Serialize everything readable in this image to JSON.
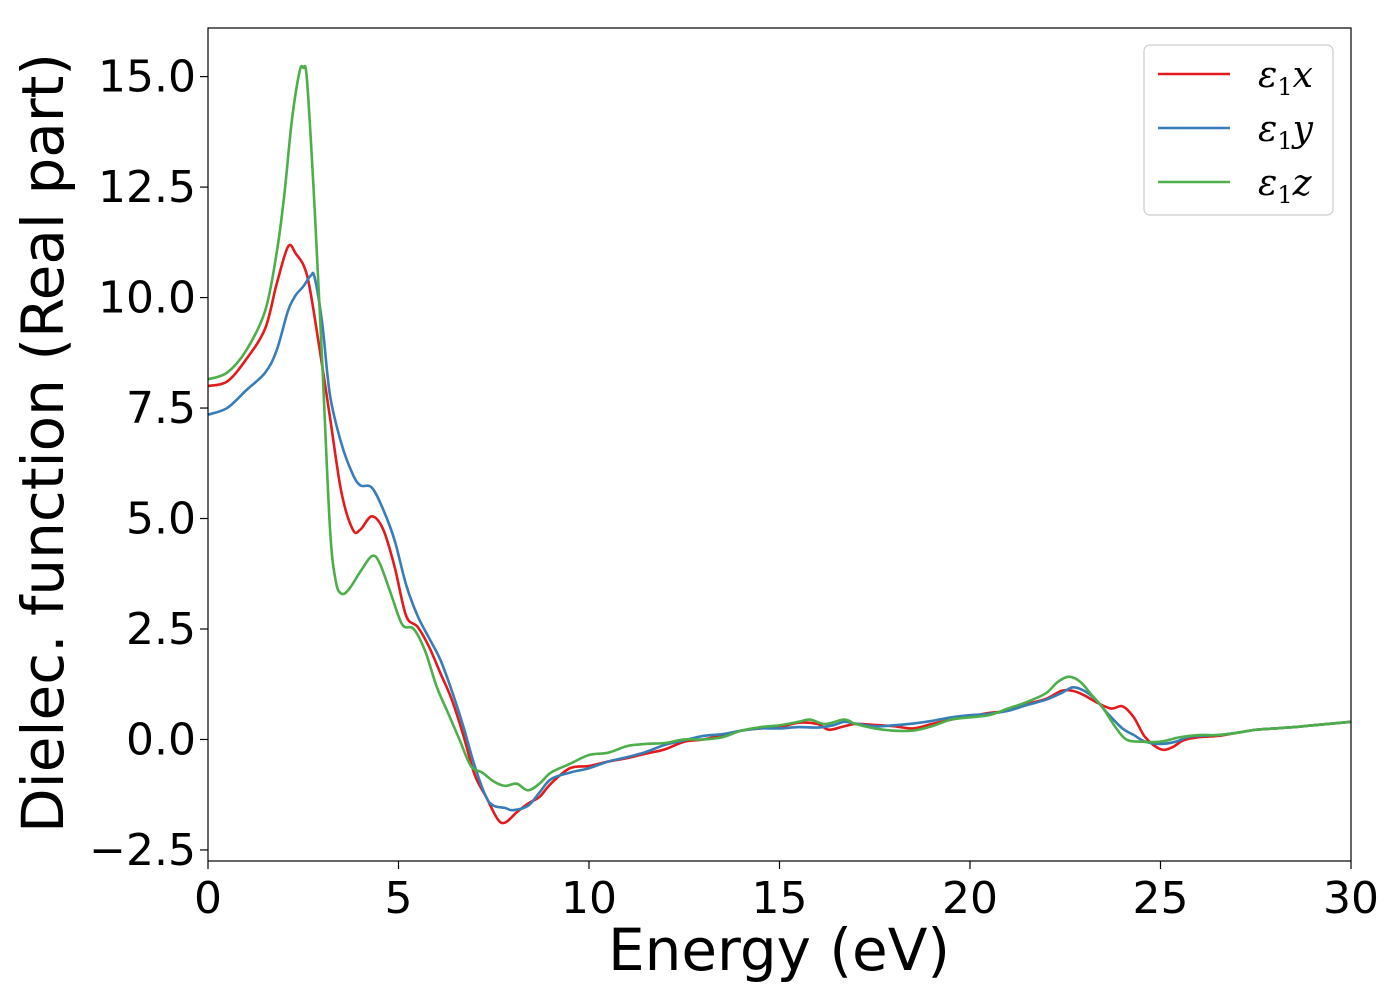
{
  "chart_data": {
    "type": "line",
    "xlabel": "Energy (eV)",
    "ylabel": "Dielec. function (Real part)",
    "xlim": [
      0,
      30
    ],
    "ylim": [
      -2.75,
      16.1
    ],
    "xticks": [
      0,
      5,
      10,
      15,
      20,
      25,
      30
    ],
    "xtick_labels": [
      "0",
      "5",
      "10",
      "15",
      "20",
      "25",
      "30"
    ],
    "yticks": [
      -2.5,
      0.0,
      2.5,
      5.0,
      7.5,
      10.0,
      12.5,
      15.0
    ],
    "ytick_labels": [
      "−2.5",
      "0.0",
      "2.5",
      "5.0",
      "7.5",
      "10.0",
      "12.5",
      "15.0"
    ],
    "grid": false,
    "legend_position": "top-right",
    "series": [
      {
        "name": "ε",
        "sub": "1",
        "axis": "x",
        "color": "#e41a1c",
        "points": [
          [
            0,
            8.0
          ],
          [
            0.5,
            8.1
          ],
          [
            1.0,
            8.6
          ],
          [
            1.5,
            9.3
          ],
          [
            1.8,
            10.3
          ],
          [
            2.1,
            11.15
          ],
          [
            2.3,
            11.0
          ],
          [
            2.6,
            10.5
          ],
          [
            2.9,
            9.0
          ],
          [
            3.2,
            7.3
          ],
          [
            3.5,
            5.6
          ],
          [
            3.8,
            4.75
          ],
          [
            4.0,
            4.75
          ],
          [
            4.3,
            5.05
          ],
          [
            4.6,
            4.75
          ],
          [
            4.9,
            3.9
          ],
          [
            5.2,
            2.8
          ],
          [
            5.5,
            2.55
          ],
          [
            5.8,
            2.1
          ],
          [
            6.1,
            1.5
          ],
          [
            6.4,
            0.9
          ],
          [
            6.7,
            0.1
          ],
          [
            7.0,
            -0.8
          ],
          [
            7.3,
            -1.3
          ],
          [
            7.6,
            -1.8
          ],
          [
            7.8,
            -1.88
          ],
          [
            8.1,
            -1.65
          ],
          [
            8.4,
            -1.45
          ],
          [
            8.7,
            -1.3
          ],
          [
            9.0,
            -1.0
          ],
          [
            9.5,
            -0.65
          ],
          [
            10.0,
            -0.6
          ],
          [
            10.5,
            -0.5
          ],
          [
            11.0,
            -0.42
          ],
          [
            11.5,
            -0.32
          ],
          [
            12.0,
            -0.22
          ],
          [
            12.5,
            -0.05
          ],
          [
            13.0,
            0.0
          ],
          [
            13.5,
            0.1
          ],
          [
            14.0,
            0.2
          ],
          [
            14.5,
            0.25
          ],
          [
            15.0,
            0.28
          ],
          [
            15.5,
            0.38
          ],
          [
            16.0,
            0.35
          ],
          [
            16.3,
            0.22
          ],
          [
            16.7,
            0.3
          ],
          [
            17.0,
            0.35
          ],
          [
            17.5,
            0.33
          ],
          [
            18.0,
            0.3
          ],
          [
            18.5,
            0.25
          ],
          [
            19.0,
            0.35
          ],
          [
            19.5,
            0.45
          ],
          [
            20.0,
            0.52
          ],
          [
            20.5,
            0.6
          ],
          [
            21.0,
            0.65
          ],
          [
            21.5,
            0.8
          ],
          [
            22.0,
            0.92
          ],
          [
            22.4,
            1.1
          ],
          [
            22.7,
            1.1
          ],
          [
            23.0,
            1.0
          ],
          [
            23.3,
            0.85
          ],
          [
            23.7,
            0.7
          ],
          [
            24.0,
            0.75
          ],
          [
            24.3,
            0.5
          ],
          [
            24.6,
            0.05
          ],
          [
            25.0,
            -0.22
          ],
          [
            25.3,
            -0.18
          ],
          [
            25.6,
            -0.02
          ],
          [
            26.0,
            0.05
          ],
          [
            26.5,
            0.08
          ],
          [
            27.0,
            0.15
          ],
          [
            27.5,
            0.22
          ],
          [
            28.0,
            0.25
          ],
          [
            28.5,
            0.28
          ],
          [
            29.0,
            0.32
          ],
          [
            29.5,
            0.36
          ],
          [
            30.0,
            0.4
          ]
        ]
      },
      {
        "name": "ε",
        "sub": "1",
        "axis": "y",
        "color": "#377eb8",
        "points": [
          [
            0,
            7.35
          ],
          [
            0.5,
            7.5
          ],
          [
            1.0,
            7.9
          ],
          [
            1.5,
            8.3
          ],
          [
            1.8,
            8.8
          ],
          [
            2.1,
            9.7
          ],
          [
            2.3,
            10.05
          ],
          [
            2.5,
            10.25
          ],
          [
            2.7,
            10.5
          ],
          [
            2.8,
            10.45
          ],
          [
            3.0,
            9.4
          ],
          [
            3.2,
            7.8
          ],
          [
            3.5,
            6.7
          ],
          [
            3.8,
            6.0
          ],
          [
            4.0,
            5.75
          ],
          [
            4.3,
            5.7
          ],
          [
            4.6,
            5.2
          ],
          [
            4.9,
            4.5
          ],
          [
            5.2,
            3.5
          ],
          [
            5.5,
            2.8
          ],
          [
            5.8,
            2.3
          ],
          [
            6.1,
            1.8
          ],
          [
            6.4,
            1.1
          ],
          [
            6.7,
            0.3
          ],
          [
            7.0,
            -0.6
          ],
          [
            7.3,
            -1.3
          ],
          [
            7.5,
            -1.5
          ],
          [
            7.8,
            -1.55
          ],
          [
            8.0,
            -1.6
          ],
          [
            8.4,
            -1.5
          ],
          [
            8.7,
            -1.2
          ],
          [
            9.0,
            -0.9
          ],
          [
            9.5,
            -0.75
          ],
          [
            10.0,
            -0.65
          ],
          [
            10.5,
            -0.5
          ],
          [
            11.0,
            -0.4
          ],
          [
            11.5,
            -0.28
          ],
          [
            12.0,
            -0.12
          ],
          [
            12.5,
            -0.02
          ],
          [
            13.0,
            0.08
          ],
          [
            13.5,
            0.12
          ],
          [
            14.0,
            0.2
          ],
          [
            14.5,
            0.25
          ],
          [
            15.0,
            0.25
          ],
          [
            15.5,
            0.28
          ],
          [
            16.0,
            0.27
          ],
          [
            16.4,
            0.32
          ],
          [
            16.7,
            0.4
          ],
          [
            17.0,
            0.36
          ],
          [
            17.5,
            0.3
          ],
          [
            18.0,
            0.32
          ],
          [
            18.5,
            0.36
          ],
          [
            19.0,
            0.42
          ],
          [
            19.5,
            0.5
          ],
          [
            20.0,
            0.55
          ],
          [
            20.5,
            0.58
          ],
          [
            21.0,
            0.65
          ],
          [
            21.5,
            0.78
          ],
          [
            22.0,
            0.9
          ],
          [
            22.4,
            1.05
          ],
          [
            22.7,
            1.18
          ],
          [
            23.0,
            1.1
          ],
          [
            23.3,
            0.9
          ],
          [
            23.6,
            0.6
          ],
          [
            24.0,
            0.25
          ],
          [
            24.3,
            0.1
          ],
          [
            24.6,
            -0.05
          ],
          [
            25.0,
            -0.1
          ],
          [
            25.4,
            -0.05
          ],
          [
            25.7,
            0.05
          ],
          [
            26.0,
            0.08
          ],
          [
            26.5,
            0.1
          ],
          [
            27.0,
            0.15
          ],
          [
            27.5,
            0.22
          ],
          [
            28.0,
            0.25
          ],
          [
            28.5,
            0.28
          ],
          [
            29.0,
            0.32
          ],
          [
            29.5,
            0.36
          ],
          [
            30.0,
            0.4
          ]
        ]
      },
      {
        "name": "ε",
        "sub": "1",
        "axis": "z",
        "color": "#4daf4a",
        "points": [
          [
            0,
            8.15
          ],
          [
            0.5,
            8.3
          ],
          [
            1.0,
            8.8
          ],
          [
            1.5,
            9.7
          ],
          [
            1.8,
            11.0
          ],
          [
            2.0,
            12.3
          ],
          [
            2.2,
            14.0
          ],
          [
            2.4,
            15.1
          ],
          [
            2.5,
            15.2
          ],
          [
            2.6,
            14.9
          ],
          [
            2.8,
            12.0
          ],
          [
            3.0,
            8.5
          ],
          [
            3.2,
            4.8
          ],
          [
            3.35,
            3.6
          ],
          [
            3.5,
            3.3
          ],
          [
            3.7,
            3.4
          ],
          [
            4.0,
            3.8
          ],
          [
            4.3,
            4.15
          ],
          [
            4.5,
            4.0
          ],
          [
            4.8,
            3.3
          ],
          [
            5.1,
            2.6
          ],
          [
            5.4,
            2.5
          ],
          [
            5.7,
            2.0
          ],
          [
            6.0,
            1.2
          ],
          [
            6.3,
            0.6
          ],
          [
            6.6,
            0.0
          ],
          [
            6.9,
            -0.6
          ],
          [
            7.2,
            -0.75
          ],
          [
            7.5,
            -0.95
          ],
          [
            7.8,
            -1.05
          ],
          [
            8.1,
            -1.0
          ],
          [
            8.4,
            -1.15
          ],
          [
            8.7,
            -1.0
          ],
          [
            9.0,
            -0.75
          ],
          [
            9.5,
            -0.55
          ],
          [
            10.0,
            -0.35
          ],
          [
            10.5,
            -0.3
          ],
          [
            11.0,
            -0.15
          ],
          [
            11.5,
            -0.1
          ],
          [
            12.0,
            -0.08
          ],
          [
            12.5,
            0.0
          ],
          [
            13.0,
            0.0
          ],
          [
            13.5,
            0.05
          ],
          [
            14.0,
            0.2
          ],
          [
            14.5,
            0.28
          ],
          [
            15.0,
            0.32
          ],
          [
            15.5,
            0.4
          ],
          [
            15.8,
            0.45
          ],
          [
            16.2,
            0.35
          ],
          [
            16.7,
            0.45
          ],
          [
            17.0,
            0.35
          ],
          [
            17.5,
            0.25
          ],
          [
            18.0,
            0.2
          ],
          [
            18.5,
            0.2
          ],
          [
            19.0,
            0.3
          ],
          [
            19.5,
            0.45
          ],
          [
            20.0,
            0.5
          ],
          [
            20.5,
            0.55
          ],
          [
            21.0,
            0.7
          ],
          [
            21.5,
            0.85
          ],
          [
            22.0,
            1.05
          ],
          [
            22.3,
            1.3
          ],
          [
            22.6,
            1.42
          ],
          [
            22.9,
            1.3
          ],
          [
            23.2,
            1.0
          ],
          [
            23.5,
            0.7
          ],
          [
            23.8,
            0.3
          ],
          [
            24.1,
            0.0
          ],
          [
            24.5,
            -0.05
          ],
          [
            25.0,
            -0.05
          ],
          [
            25.5,
            0.05
          ],
          [
            26.0,
            0.1
          ],
          [
            26.5,
            0.1
          ],
          [
            27.0,
            0.15
          ],
          [
            27.5,
            0.22
          ],
          [
            28.0,
            0.25
          ],
          [
            28.5,
            0.28
          ],
          [
            29.0,
            0.32
          ],
          [
            29.5,
            0.36
          ],
          [
            30.0,
            0.4
          ]
        ]
      }
    ]
  }
}
